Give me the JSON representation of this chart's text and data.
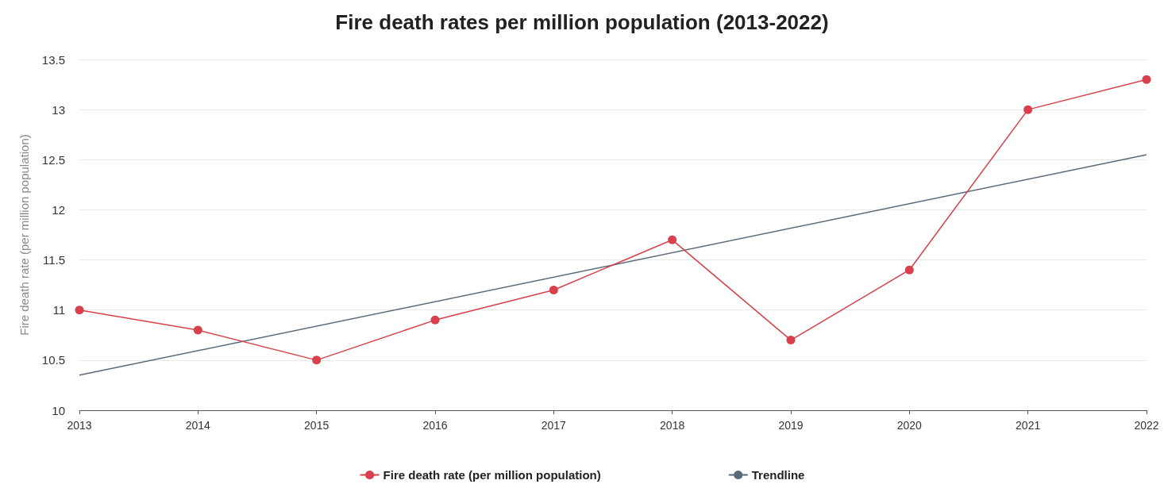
{
  "chart_data": {
    "type": "line",
    "title": "Fire death rates per million population (2013-2022)",
    "ylabel": "Fire death rate (per million population)",
    "x": [
      2013,
      2014,
      2015,
      2016,
      2017,
      2018,
      2019,
      2020,
      2021,
      2022
    ],
    "xlim": [
      2013,
      2022
    ],
    "xticks": [
      2013,
      2014,
      2015,
      2016,
      2017,
      2018,
      2019,
      2020,
      2021,
      2022
    ],
    "ylim": [
      10,
      13.5
    ],
    "yticks": [
      10,
      10.5,
      11,
      11.5,
      12,
      12.5,
      13,
      13.5
    ],
    "series": [
      {
        "name": "Fire death rate (per million population)",
        "color": "#d8414b",
        "values": [
          11,
          10.8,
          10.5,
          10.9,
          11.2,
          11.7,
          10.7,
          11.4,
          13,
          13.3
        ],
        "marker": "circle"
      },
      {
        "name": "Trendline",
        "color": "#5b6a78",
        "x": [
          2013,
          2022
        ],
        "values": [
          10.35,
          12.55
        ],
        "marker": "none"
      }
    ],
    "grid": "y",
    "legend": "bottom",
    "line_style": "solid"
  }
}
